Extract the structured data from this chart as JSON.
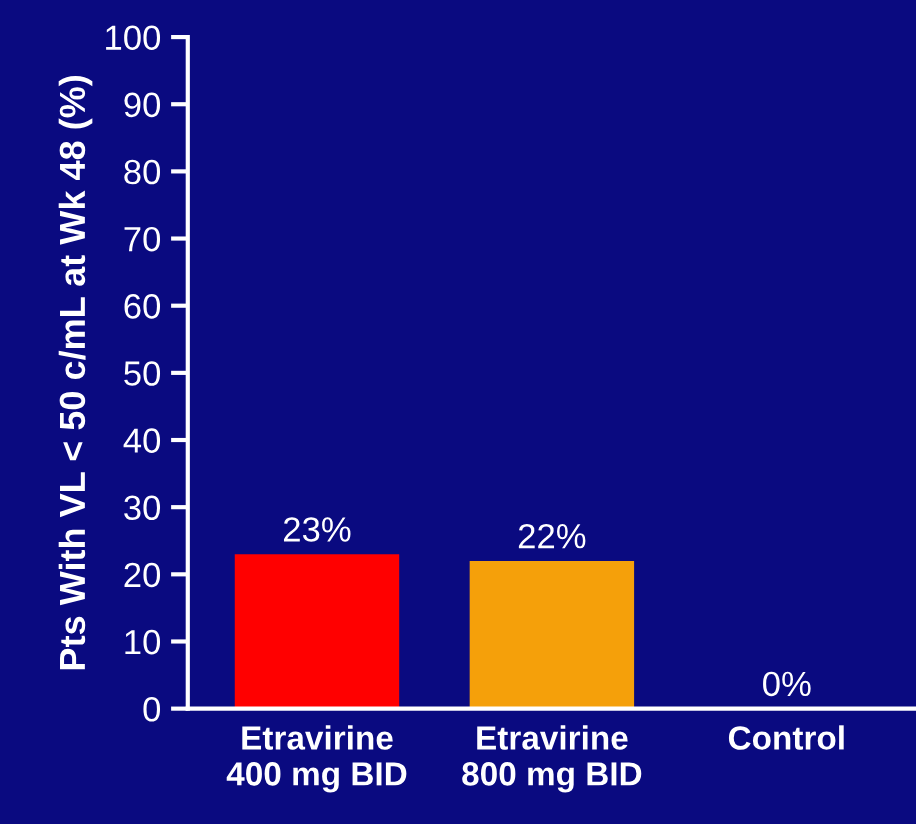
{
  "chart_data": {
    "type": "bar",
    "ylabel": "Pts With VL < 50 c/mL at Wk 48 (%)",
    "categories": [
      "Etravirine\n400 mg BID",
      "Etravirine\n800 mg BID",
      "Control"
    ],
    "values": [
      23,
      22,
      0
    ],
    "colors": [
      "#ff0000",
      "#f5a00a",
      "#f5a00a"
    ],
    "value_labels": [
      "23%",
      "22%",
      "0%"
    ],
    "ylim": [
      0,
      100
    ],
    "yticks": [
      0,
      10,
      20,
      30,
      40,
      50,
      60,
      70,
      80,
      90,
      100
    ],
    "grid": false,
    "legend": false
  }
}
